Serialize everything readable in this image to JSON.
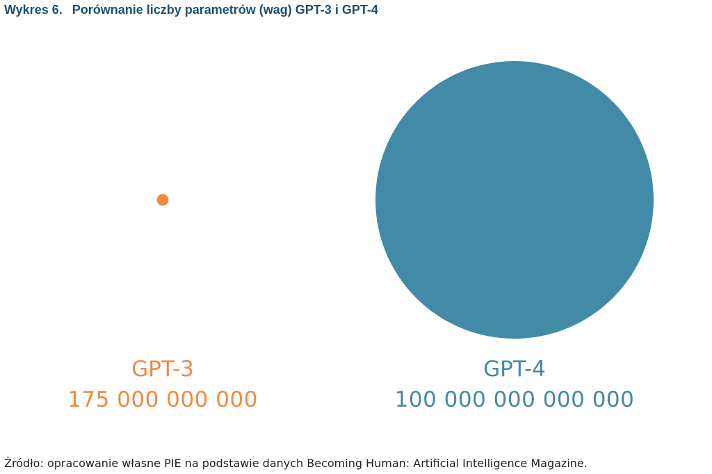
{
  "title": {
    "number": "Wykres 6.",
    "text": "Porównanie liczby parametrów (wag) GPT-3 i GPT-4"
  },
  "chart_data": {
    "type": "bubble",
    "title": "Porównanie liczby parametrów (wag) GPT-3 i GPT-4",
    "series": [
      {
        "name": "GPT-3",
        "value": 175000000000,
        "value_label": "175 000 000 000",
        "color": "#ef8a43"
      },
      {
        "name": "GPT-4",
        "value": 100000000000000,
        "value_label": "100 000 000 000 000",
        "color": "#428aa6"
      }
    ]
  },
  "source": "Źródło: opracowanie własne PIE na podstawie danych Becoming Human: Artificial Intelligence Magazine."
}
